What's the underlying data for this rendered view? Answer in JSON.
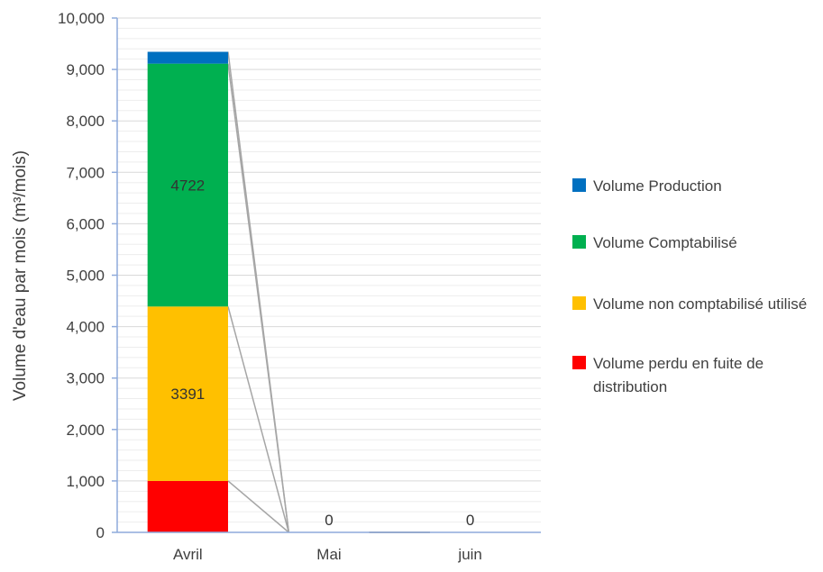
{
  "chart_data": {
    "type": "bar",
    "stacked": true,
    "categories": [
      "Avril",
      "Mai",
      "juin"
    ],
    "series": [
      {
        "name": "Volume perdu en fuite de distribution",
        "values": [
          1000,
          0,
          0
        ],
        "color": "#ff0000"
      },
      {
        "name": "Volume non comptabilisé utilisé",
        "values": [
          3391,
          0,
          0
        ],
        "color": "#ffc000"
      },
      {
        "name": "Volume Comptabilisé",
        "values": [
          4722,
          0,
          0
        ],
        "color": "#00b050"
      },
      {
        "name": "Volume Production",
        "values": [
          230,
          0,
          0
        ],
        "color": "#0070c0"
      }
    ],
    "data_labels": [
      {
        "category": "Avril",
        "series": "Volume non comptabilisé utilisé",
        "text": "3391"
      },
      {
        "category": "Avril",
        "series": "Volume Comptabilisé",
        "text": "4722"
      },
      {
        "category": "Mai",
        "series": "Volume Comptabilisé",
        "text": "0"
      },
      {
        "category": "juin",
        "series": "Volume Comptabilisé",
        "text": "0"
      }
    ],
    "ylabel": "Volume d'eau par mois (m³/mois)",
    "xlabel": "",
    "ylim": [
      0,
      10000
    ],
    "yticks": [
      "0",
      "1,000",
      "2,000",
      "3,000",
      "4,000",
      "5,000",
      "6,000",
      "7,000",
      "8,000",
      "9,000",
      "10,000"
    ],
    "grid": true,
    "series_lines": true,
    "legend_position": "right",
    "legend_order": [
      "Volume Production",
      "Volume Comptabilisé",
      "Volume non comptabilisé utilisé",
      "Volume perdu en fuite de distribution"
    ]
  }
}
